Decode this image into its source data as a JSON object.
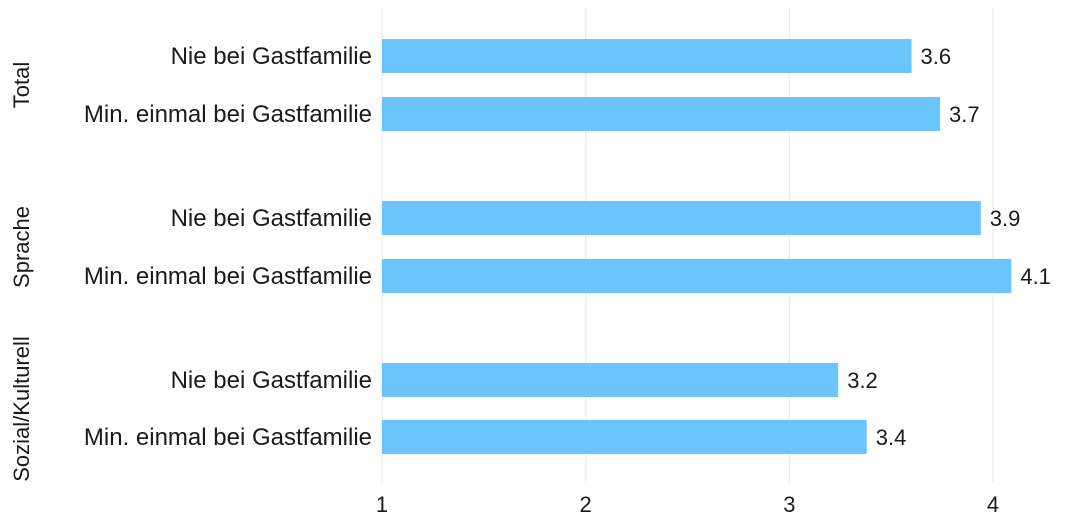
{
  "chart_data": {
    "type": "bar",
    "orientation": "horizontal",
    "title": "",
    "xlabel": "",
    "ylabel": "",
    "xlim": [
      1,
      4.3
    ],
    "grid": "vertical",
    "bar_color": "#6cc4fc",
    "grid_color": "#ebebeb",
    "x_ticks": [
      {
        "value": 1,
        "label": "1"
      },
      {
        "value": 2,
        "label": "2"
      },
      {
        "value": 3,
        "label": "3"
      },
      {
        "value": 4,
        "label": "4"
      }
    ],
    "groups": [
      {
        "name": "Total",
        "bars": [
          {
            "label": "Nie bei Gastfamilie",
            "value": 3.6,
            "value_label": "3.6"
          },
          {
            "label": "Min. einmal bei Gastfamilie",
            "value": 3.74,
            "value_label": "3.7"
          }
        ]
      },
      {
        "name": "Sprache",
        "bars": [
          {
            "label": "Nie bei Gastfamilie",
            "value": 3.94,
            "value_label": "3.9"
          },
          {
            "label": "Min. einmal bei Gastfamilie",
            "value": 4.09,
            "value_label": "4.1"
          }
        ]
      },
      {
        "name": "Sozial/Kulturell",
        "bars": [
          {
            "label": "Nie bei Gastfamilie",
            "value": 3.24,
            "value_label": "3.2"
          },
          {
            "label": "Min. einmal bei Gastfamilie",
            "value": 3.38,
            "value_label": "3.4"
          }
        ]
      }
    ]
  }
}
